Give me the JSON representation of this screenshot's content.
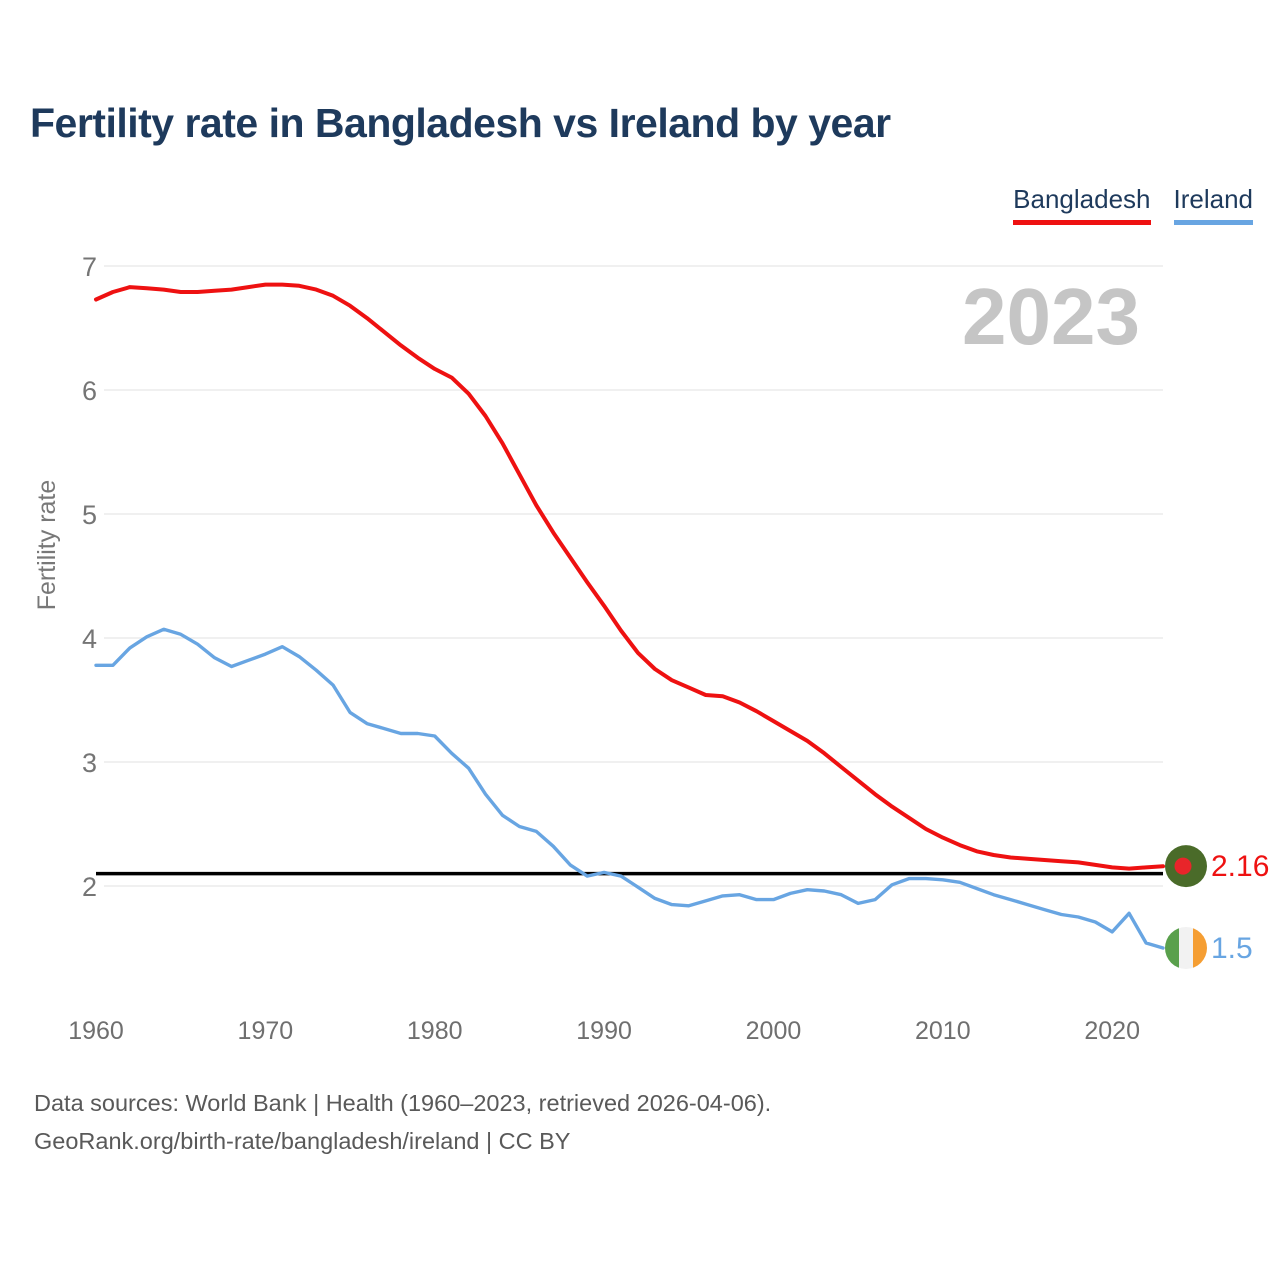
{
  "header": {
    "title": "Fertility rate in Bangladesh vs Ireland by year"
  },
  "legend": {
    "items": [
      {
        "label": "Bangladesh",
        "color": "#ee1111"
      },
      {
        "label": "Ireland",
        "color": "#68a5e2"
      }
    ]
  },
  "chart_data": {
    "type": "line",
    "title": "Fertility rate in Bangladesh vs Ireland by year",
    "ylabel": "Fertility rate",
    "watermark": "2023",
    "grid": true,
    "legend_position": "top-right",
    "xlim": [
      1960,
      2023
    ],
    "ylim": [
      1.4,
      7.05
    ],
    "yticks": [
      7,
      6,
      5,
      4,
      3,
      2
    ],
    "xticks": [
      1960,
      1970,
      1980,
      1990,
      2000,
      2010,
      2020
    ],
    "reference_line": 2.1,
    "x": [
      1960,
      1961,
      1962,
      1963,
      1964,
      1965,
      1966,
      1967,
      1968,
      1969,
      1970,
      1971,
      1972,
      1973,
      1974,
      1975,
      1976,
      1977,
      1978,
      1979,
      1980,
      1981,
      1982,
      1983,
      1984,
      1985,
      1986,
      1987,
      1988,
      1989,
      1990,
      1991,
      1992,
      1993,
      1994,
      1995,
      1996,
      1997,
      1998,
      1999,
      2000,
      2001,
      2002,
      2003,
      2004,
      2005,
      2006,
      2007,
      2008,
      2009,
      2010,
      2011,
      2012,
      2013,
      2014,
      2015,
      2016,
      2017,
      2018,
      2019,
      2020,
      2021,
      2022,
      2023
    ],
    "series": [
      {
        "name": "Bangladesh",
        "color": "#ee1111",
        "end_label": "2.16",
        "flag": {
          "type": "bangladesh",
          "field": "#4a6b29",
          "disc": "#e8252a"
        },
        "values": [
          6.73,
          6.79,
          6.83,
          6.82,
          6.81,
          6.79,
          6.79,
          6.8,
          6.81,
          6.83,
          6.85,
          6.85,
          6.84,
          6.81,
          6.76,
          6.68,
          6.58,
          6.47,
          6.36,
          6.26,
          6.17,
          6.1,
          5.97,
          5.79,
          5.57,
          5.32,
          5.07,
          4.85,
          4.65,
          4.45,
          4.26,
          4.06,
          3.88,
          3.75,
          3.66,
          3.6,
          3.54,
          3.53,
          3.48,
          3.41,
          3.33,
          3.25,
          3.17,
          3.07,
          2.96,
          2.85,
          2.74,
          2.64,
          2.55,
          2.46,
          2.39,
          2.33,
          2.28,
          2.25,
          2.23,
          2.22,
          2.21,
          2.2,
          2.19,
          2.17,
          2.15,
          2.14,
          2.15,
          2.16
        ]
      },
      {
        "name": "Ireland",
        "color": "#68a5e2",
        "end_label": "1.5",
        "flag": {
          "type": "ireland",
          "green": "#59a04c",
          "white": "#f2f2f2",
          "orange": "#f59e33"
        },
        "values": [
          3.78,
          3.78,
          3.92,
          4.01,
          4.07,
          4.03,
          3.95,
          3.84,
          3.77,
          3.82,
          3.87,
          3.93,
          3.85,
          3.74,
          3.62,
          3.4,
          3.31,
          3.27,
          3.23,
          3.23,
          3.21,
          3.07,
          2.95,
          2.74,
          2.57,
          2.48,
          2.44,
          2.32,
          2.17,
          2.08,
          2.11,
          2.08,
          1.99,
          1.9,
          1.85,
          1.84,
          1.88,
          1.92,
          1.93,
          1.89,
          1.89,
          1.94,
          1.97,
          1.96,
          1.93,
          1.86,
          1.89,
          2.01,
          2.06,
          2.06,
          2.05,
          2.03,
          1.98,
          1.93,
          1.89,
          1.85,
          1.81,
          1.77,
          1.75,
          1.71,
          1.63,
          1.78,
          1.54,
          1.5
        ]
      }
    ]
  },
  "footer": {
    "line1": "Data sources: World Bank | Health (1960–2023, retrieved 2026-04-06).",
    "line2": "GeoRank.org/birth-rate/bangladesh/ireland | CC BY"
  }
}
